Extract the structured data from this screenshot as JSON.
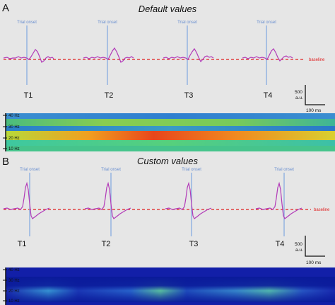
{
  "panels": [
    {
      "letter": "A",
      "title": "Default values",
      "onset_label": "Trial onset",
      "baseline_label": "baseline",
      "trials": [
        "T1",
        "T2",
        "T3",
        "T4"
      ],
      "scalebar": {
        "amplitude_value": "500",
        "amplitude_unit": "a.u.",
        "time": "100 ms"
      },
      "spectrogram": {
        "freq_labels": [
          "40 Hz",
          "30 Hz",
          "20 Hz",
          "10 Hz"
        ]
      }
    },
    {
      "letter": "B",
      "title": "Custom values",
      "onset_label": "Trial onset",
      "baseline_label": "baseline",
      "trials": [
        "T1",
        "T2",
        "T3",
        "T4"
      ],
      "scalebar": {
        "amplitude_value": "500",
        "amplitude_unit": "a.u.",
        "time": "100 ms"
      },
      "spectrogram": {
        "freq_labels": [
          "40 Hz",
          "30 Hz",
          "20 Hz",
          "10 Hz"
        ]
      }
    }
  ],
  "colors": {
    "signal": "#b23ab8",
    "onset_line": "#7fa7e0",
    "baseline": "#e02020",
    "text": "#111111"
  }
}
